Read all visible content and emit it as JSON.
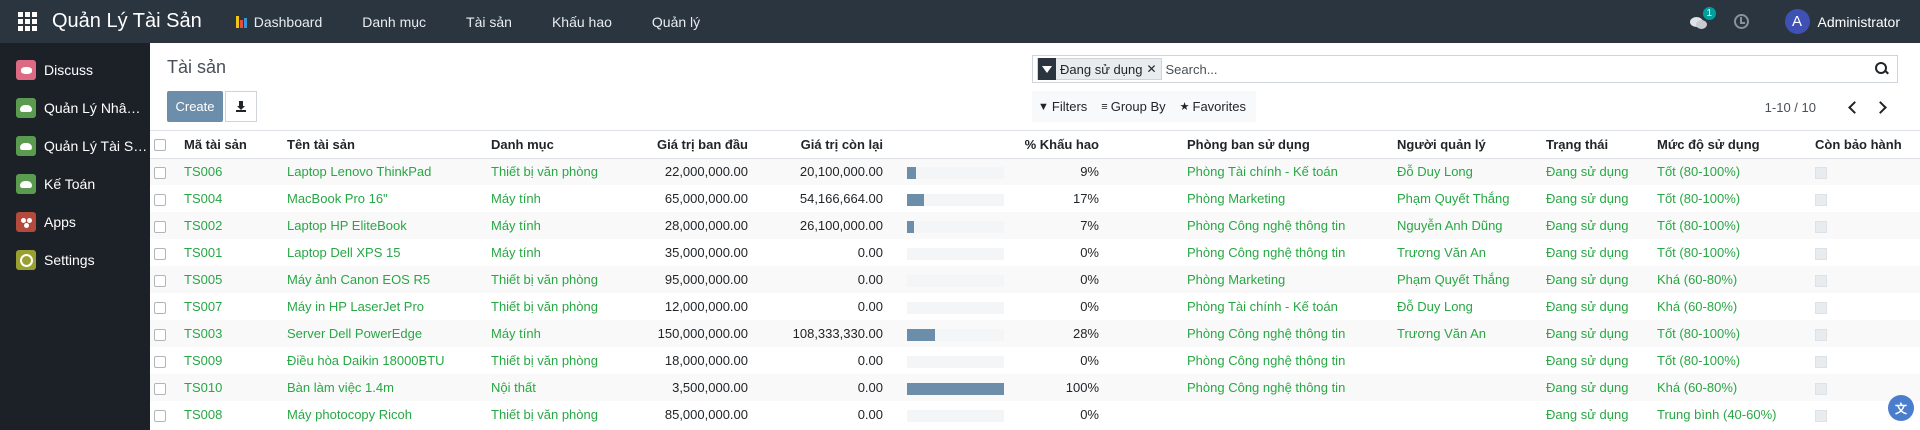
{
  "navbar": {
    "brand": "Quản Lý Tài Sản",
    "menus": [
      "Dashboard",
      "Danh mục",
      "Tài sản",
      "Khấu hao",
      "Quản lý"
    ],
    "chat_badge": "1",
    "user_initial": "A",
    "user_name": "Administrator"
  },
  "sidebar": {
    "items": [
      {
        "label": "Discuss",
        "icon": "discuss-icon"
      },
      {
        "label": "Quản Lý Nhân ...",
        "icon": "hr-icon"
      },
      {
        "label": "Quản Lý Tài Sản",
        "icon": "asset-icon"
      },
      {
        "label": "Kế Toán",
        "icon": "accounting-icon"
      },
      {
        "label": "Apps",
        "icon": "apps-icon"
      },
      {
        "label": "Settings",
        "icon": "settings-icon"
      }
    ]
  },
  "control": {
    "title": "Tài sản",
    "create_label": "Create",
    "facet_label": "Đang sử dụng",
    "search_placeholder": "Search...",
    "filters_label": "Filters",
    "groupby_label": "Group By",
    "favorites_label": "Favorites",
    "pager_value": "1-10 / 10"
  },
  "table": {
    "headers": {
      "code": "Mã tài sản",
      "name": "Tên tài sản",
      "category": "Danh mục",
      "original": "Giá trị ban đầu",
      "remaining": "Giá trị còn lại",
      "depr": "% Khấu hao",
      "dept": "Phòng ban sử dụng",
      "manager": "Người quản lý",
      "status": "Trạng thái",
      "usage": "Mức độ sử dụng",
      "warranty": "Còn bảo hành"
    },
    "rows": [
      {
        "code": "TS006",
        "name": "Laptop Lenovo ThinkPad",
        "category": "Thiết bị văn phòng",
        "original": "22,000,000.00",
        "remaining": "20,100,000.00",
        "depr_value": 9,
        "depr": "9%",
        "dept": "Phòng Tài chính - Kế toán",
        "manager": "Đỗ Duy Long",
        "status": "Đang sử dụng",
        "usage": "Tốt (80-100%)"
      },
      {
        "code": "TS004",
        "name": "MacBook Pro 16\"",
        "category": "Máy tính",
        "original": "65,000,000.00",
        "remaining": "54,166,664.00",
        "depr_value": 17,
        "depr": "17%",
        "dept": "Phòng Marketing",
        "manager": "Phạm Quyết Thắng",
        "status": "Đang sử dụng",
        "usage": "Tốt (80-100%)"
      },
      {
        "code": "TS002",
        "name": "Laptop HP EliteBook",
        "category": "Máy tính",
        "original": "28,000,000.00",
        "remaining": "26,100,000.00",
        "depr_value": 7,
        "depr": "7%",
        "dept": "Phòng Công nghệ thông tin",
        "manager": "Nguyễn Anh Dũng",
        "status": "Đang sử dụng",
        "usage": "Tốt (80-100%)"
      },
      {
        "code": "TS001",
        "name": "Laptop Dell XPS 15",
        "category": "Máy tính",
        "original": "35,000,000.00",
        "remaining": "0.00",
        "depr_value": 0,
        "depr": "0%",
        "dept": "Phòng Công nghệ thông tin",
        "manager": "Trương Văn An",
        "status": "Đang sử dụng",
        "usage": "Tốt (80-100%)"
      },
      {
        "code": "TS005",
        "name": "Máy ảnh Canon EOS R5",
        "category": "Thiết bị văn phòng",
        "original": "95,000,000.00",
        "remaining": "0.00",
        "depr_value": 0,
        "depr": "0%",
        "dept": "Phòng Marketing",
        "manager": "Phạm Quyết Thắng",
        "status": "Đang sử dụng",
        "usage": "Khá (60-80%)"
      },
      {
        "code": "TS007",
        "name": "Máy in HP LaserJet Pro",
        "category": "Thiết bị văn phòng",
        "original": "12,000,000.00",
        "remaining": "0.00",
        "depr_value": 0,
        "depr": "0%",
        "dept": "Phòng Tài chính - Kế toán",
        "manager": "Đỗ Duy Long",
        "status": "Đang sử dụng",
        "usage": "Khá (60-80%)"
      },
      {
        "code": "TS003",
        "name": "Server Dell PowerEdge",
        "category": "Máy tính",
        "original": "150,000,000.00",
        "remaining": "108,333,330.00",
        "depr_value": 28,
        "depr": "28%",
        "dept": "Phòng Công nghệ thông tin",
        "manager": "Trương Văn An",
        "status": "Đang sử dụng",
        "usage": "Tốt (80-100%)"
      },
      {
        "code": "TS009",
        "name": "Điều hòa Daikin 18000BTU",
        "category": "Thiết bị văn phòng",
        "original": "18,000,000.00",
        "remaining": "0.00",
        "depr_value": 0,
        "depr": "0%",
        "dept": "Phòng Công nghệ thông tin",
        "manager": "",
        "status": "Đang sử dụng",
        "usage": "Tốt (80-100%)"
      },
      {
        "code": "TS010",
        "name": "Bàn làm việc 1.4m",
        "category": "Nội thất",
        "original": "3,500,000.00",
        "remaining": "0.00",
        "depr_value": 100,
        "depr": "100%",
        "dept": "Phòng Công nghệ thông tin",
        "manager": "",
        "status": "Đang sử dụng",
        "usage": "Khá (60-80%)"
      },
      {
        "code": "TS008",
        "name": "Máy photocopy Ricoh",
        "category": "Thiết bị văn phòng",
        "original": "85,000,000.00",
        "remaining": "0.00",
        "depr_value": 0,
        "depr": "0%",
        "dept": "",
        "manager": "",
        "status": "Đang sử dụng",
        "usage": "Trung bình (40-60%)"
      }
    ]
  },
  "colors": {
    "navbar": "#2b3540",
    "accent": "#6d8eaa",
    "link": "#28a745",
    "badge": "#00a09d"
  }
}
